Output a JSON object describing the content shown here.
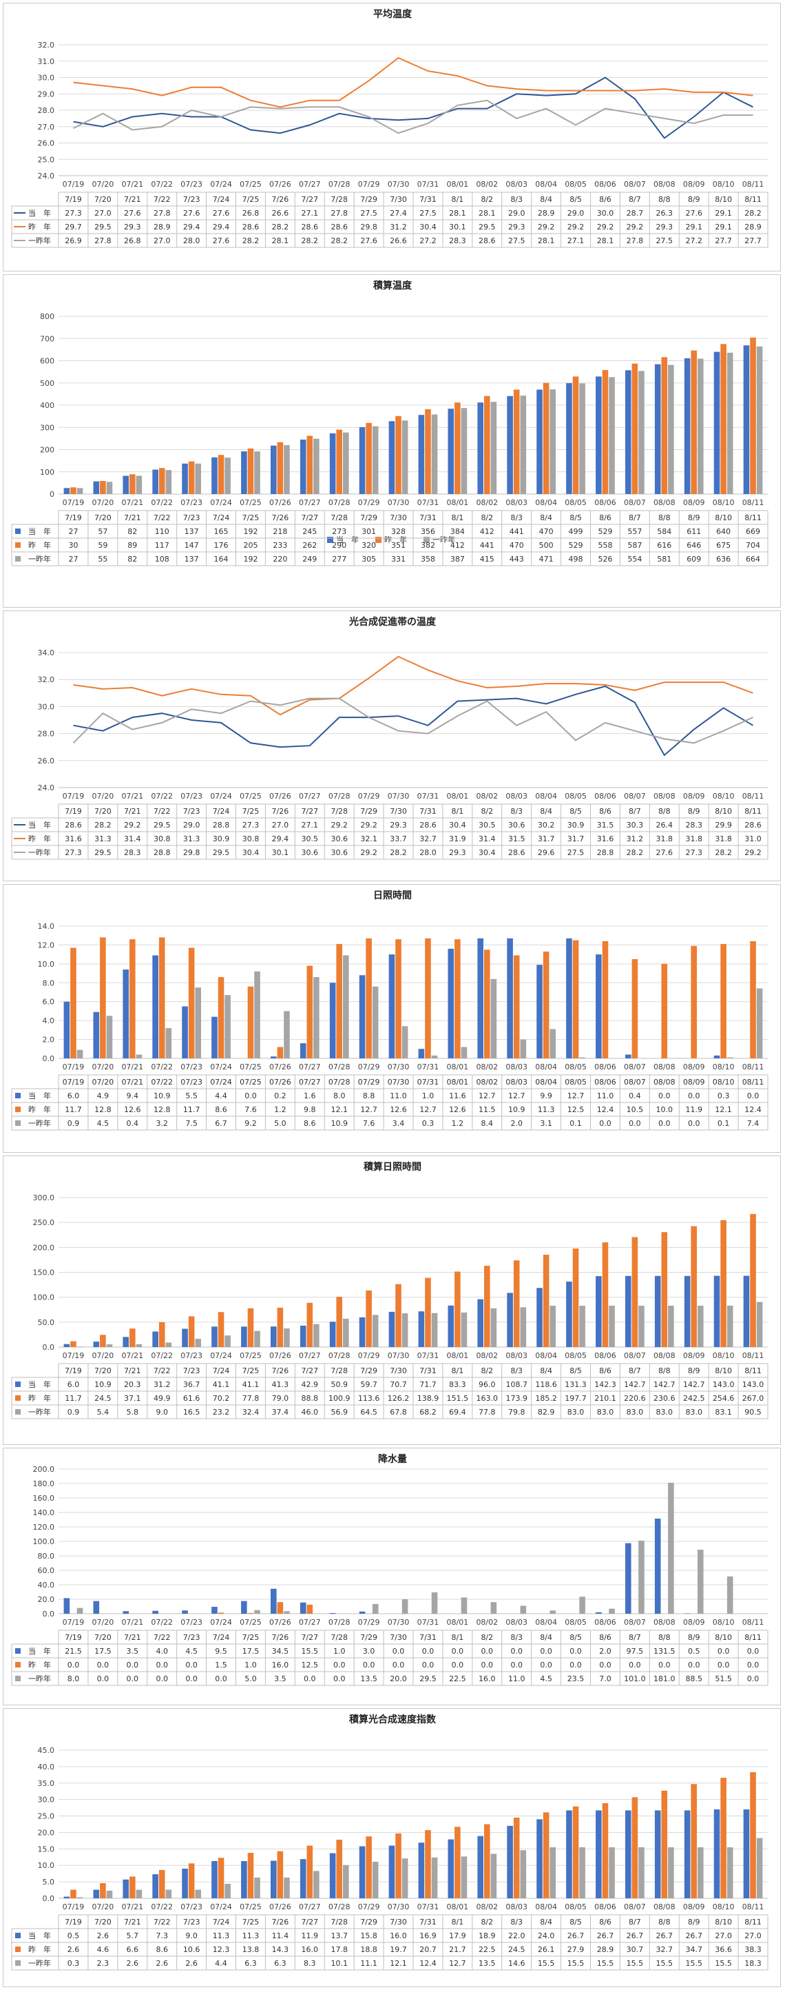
{
  "dates_top": [
    "07/19",
    "07/20",
    "07/21",
    "07/22",
    "07/23",
    "07/24",
    "07/25",
    "07/26",
    "07/27",
    "07/28",
    "07/29",
    "07/30",
    "07/31",
    "08/01",
    "08/02",
    "08/03",
    "08/04",
    "08/05",
    "08/06",
    "08/07",
    "08/08",
    "08/09",
    "08/10",
    "08/11"
  ],
  "dates_row": [
    "7/19",
    "7/20",
    "7/21",
    "7/22",
    "7/23",
    "7/24",
    "7/25",
    "7/26",
    "7/27",
    "7/28",
    "7/29",
    "7/30",
    "7/31",
    "8/1",
    "8/2",
    "8/3",
    "8/4",
    "8/5",
    "8/6",
    "8/7",
    "8/8",
    "8/9",
    "8/10",
    "8/11"
  ],
  "chart_data": [
    {
      "type": "line",
      "title": "平均温度",
      "ylim": [
        24.0,
        32.0
      ],
      "ystep": 1.0,
      "decimals": 1,
      "grid": true,
      "x_source": "top",
      "row_x_source": "row",
      "series": [
        {
          "name": "当　年",
          "color": "#2f5597",
          "values": [
            27.3,
            27.0,
            27.6,
            27.8,
            27.6,
            27.6,
            26.8,
            26.6,
            27.1,
            27.8,
            27.5,
            27.4,
            27.5,
            28.1,
            28.1,
            29.0,
            28.9,
            29.0,
            30.0,
            28.7,
            26.3,
            27.6,
            29.1,
            28.2
          ]
        },
        {
          "name": "昨　年",
          "color": "#ed7d31",
          "values": [
            29.7,
            29.5,
            29.3,
            28.9,
            29.4,
            29.4,
            28.6,
            28.2,
            28.6,
            28.6,
            29.8,
            31.2,
            30.4,
            30.1,
            29.5,
            29.3,
            29.2,
            29.2,
            29.2,
            29.2,
            29.3,
            29.1,
            29.1,
            28.9
          ]
        },
        {
          "name": "一昨年",
          "color": "#a5a5a5",
          "values": [
            26.9,
            27.8,
            26.8,
            27.0,
            28.0,
            27.6,
            28.2,
            28.1,
            28.2,
            28.2,
            27.6,
            26.6,
            27.2,
            28.3,
            28.6,
            27.5,
            28.1,
            27.1,
            28.1,
            27.8,
            27.5,
            27.2,
            27.7,
            27.7
          ]
        }
      ]
    },
    {
      "type": "bar",
      "title": "積算温度",
      "ylim": [
        0,
        800
      ],
      "ystep": 100,
      "decimals": 0,
      "grid": true,
      "x_source": "top",
      "row_x_source": "row",
      "legend": "bottom",
      "series": [
        {
          "name": "当　年",
          "color": "#4472c4",
          "values": [
            27,
            57,
            82,
            110,
            137,
            165,
            192,
            218,
            245,
            273,
            301,
            328,
            356,
            384,
            412,
            441,
            470,
            499,
            529,
            557,
            584,
            611,
            640,
            669
          ]
        },
        {
          "name": "昨　年",
          "color": "#ed7d31",
          "values": [
            30,
            59,
            89,
            117,
            147,
            176,
            205,
            233,
            262,
            290,
            320,
            351,
            382,
            412,
            441,
            470,
            500,
            529,
            558,
            587,
            616,
            646,
            675,
            704
          ]
        },
        {
          "name": "一昨年",
          "color": "#a5a5a5",
          "values": [
            27,
            55,
            82,
            108,
            137,
            164,
            192,
            220,
            249,
            277,
            305,
            331,
            358,
            387,
            415,
            443,
            471,
            498,
            526,
            554,
            581,
            609,
            636,
            664
          ]
        }
      ]
    },
    {
      "type": "line",
      "title": "光合成促進帯の温度",
      "ylim": [
        24.0,
        34.0
      ],
      "ystep": 2.0,
      "decimals": 1,
      "grid": true,
      "x_source": "top",
      "row_x_source": "row",
      "series": [
        {
          "name": "当　年",
          "color": "#2f5597",
          "values": [
            28.6,
            28.2,
            29.2,
            29.5,
            29.0,
            28.8,
            27.3,
            27.0,
            27.1,
            29.2,
            29.2,
            29.3,
            28.6,
            30.4,
            30.5,
            30.6,
            30.2,
            30.9,
            31.5,
            30.3,
            26.4,
            28.3,
            29.9,
            28.6
          ]
        },
        {
          "name": "昨　年",
          "color": "#ed7d31",
          "values": [
            31.6,
            31.3,
            31.4,
            30.8,
            31.3,
            30.9,
            30.8,
            29.4,
            30.5,
            30.6,
            32.1,
            33.7,
            32.7,
            31.9,
            31.4,
            31.5,
            31.7,
            31.7,
            31.6,
            31.2,
            31.8,
            31.8,
            31.8,
            31.0
          ]
        },
        {
          "name": "一昨年",
          "color": "#a5a5a5",
          "values": [
            27.3,
            29.5,
            28.3,
            28.8,
            29.8,
            29.5,
            30.4,
            30.1,
            30.6,
            30.6,
            29.2,
            28.2,
            28.0,
            29.3,
            30.4,
            28.6,
            29.6,
            27.5,
            28.8,
            28.2,
            27.6,
            27.3,
            28.2,
            29.2
          ]
        }
      ]
    },
    {
      "type": "bar",
      "title": "日照時間",
      "ylim": [
        0.0,
        14.0
      ],
      "ystep": 2.0,
      "decimals": 1,
      "grid": true,
      "x_source": "top",
      "row_x_source": "top",
      "series": [
        {
          "name": "当　年",
          "color": "#4472c4",
          "values": [
            6.0,
            4.9,
            9.4,
            10.9,
            5.5,
            4.4,
            0.0,
            0.2,
            1.6,
            8.0,
            8.8,
            11.0,
            1.0,
            11.6,
            12.7,
            12.7,
            9.9,
            12.7,
            11.0,
            0.4,
            0.0,
            0.0,
            0.3,
            0.0
          ]
        },
        {
          "name": "昨　年",
          "color": "#ed7d31",
          "values": [
            11.7,
            12.8,
            12.6,
            12.8,
            11.7,
            8.6,
            7.6,
            1.2,
            9.8,
            12.1,
            12.7,
            12.6,
            12.7,
            12.6,
            11.5,
            10.9,
            11.3,
            12.5,
            12.4,
            10.5,
            10.0,
            11.9,
            12.1,
            12.4
          ]
        },
        {
          "name": "一昨年",
          "color": "#a5a5a5",
          "values": [
            0.9,
            4.5,
            0.4,
            3.2,
            7.5,
            6.7,
            9.2,
            5.0,
            8.6,
            10.9,
            7.6,
            3.4,
            0.3,
            1.2,
            8.4,
            2.0,
            3.1,
            0.1,
            0.0,
            0.0,
            0.0,
            0.0,
            0.1,
            7.4
          ]
        }
      ]
    },
    {
      "type": "bar",
      "title": "積算日照時間",
      "ylim": [
        0.0,
        300.0
      ],
      "ystep": 50.0,
      "decimals": 1,
      "grid": true,
      "x_source": "top",
      "row_x_source": "row",
      "series": [
        {
          "name": "当　年",
          "color": "#4472c4",
          "values": [
            6.0,
            10.9,
            20.3,
            31.2,
            36.7,
            41.1,
            41.1,
            41.3,
            42.9,
            50.9,
            59.7,
            70.7,
            71.7,
            83.3,
            96.0,
            108.7,
            118.6,
            131.3,
            142.3,
            142.7,
            142.7,
            142.7,
            143.0,
            143.0
          ]
        },
        {
          "name": "昨　年",
          "color": "#ed7d31",
          "values": [
            11.7,
            24.5,
            37.1,
            49.9,
            61.6,
            70.2,
            77.8,
            79.0,
            88.8,
            100.9,
            113.6,
            126.2,
            138.9,
            151.5,
            163.0,
            173.9,
            185.2,
            197.7,
            210.1,
            220.6,
            230.6,
            242.5,
            254.6,
            267.0
          ]
        },
        {
          "name": "一昨年",
          "color": "#a5a5a5",
          "values": [
            0.9,
            5.4,
            5.8,
            9.0,
            16.5,
            23.2,
            32.4,
            37.4,
            46.0,
            56.9,
            64.5,
            67.8,
            68.2,
            69.4,
            77.8,
            79.8,
            82.9,
            83.0,
            83.0,
            83.0,
            83.0,
            83.0,
            83.1,
            90.5
          ]
        }
      ]
    },
    {
      "type": "bar",
      "title": "降水量",
      "ylim": [
        0.0,
        200.0
      ],
      "ystep": 20.0,
      "decimals": 1,
      "grid": true,
      "x_source": "top",
      "row_x_source": "row",
      "series": [
        {
          "name": "当　年",
          "color": "#4472c4",
          "values": [
            21.5,
            17.5,
            3.5,
            4.0,
            4.5,
            9.5,
            17.5,
            34.5,
            15.5,
            1.0,
            3.0,
            0.0,
            0.0,
            0.0,
            0.0,
            0.0,
            0.0,
            0.0,
            2.0,
            97.5,
            131.5,
            0.5,
            0.0,
            0.0
          ]
        },
        {
          "name": "昨　年",
          "color": "#ed7d31",
          "values": [
            0.0,
            0.0,
            0.0,
            0.0,
            0.0,
            1.5,
            1.0,
            16.0,
            12.5,
            0.0,
            0.0,
            0.0,
            0.0,
            0.0,
            0.0,
            0.0,
            0.0,
            0.0,
            0.0,
            0.0,
            0.0,
            0.0,
            0.0,
            0.0
          ]
        },
        {
          "name": "一昨年",
          "color": "#a5a5a5",
          "values": [
            8.0,
            0.0,
            0.0,
            0.0,
            0.0,
            0.0,
            5.0,
            3.5,
            0.0,
            0.0,
            13.5,
            20.0,
            29.5,
            22.5,
            16.0,
            11.0,
            4.5,
            23.5,
            7.0,
            101.0,
            181.0,
            88.5,
            51.5,
            0.0
          ]
        }
      ]
    },
    {
      "type": "bar",
      "title": "積算光合成速度指数",
      "ylim": [
        0.0,
        45.0
      ],
      "ystep": 5.0,
      "decimals": 1,
      "grid": true,
      "x_source": "top",
      "row_x_source": "row",
      "series": [
        {
          "name": "当　年",
          "color": "#4472c4",
          "values": [
            0.5,
            2.6,
            5.7,
            7.3,
            9.0,
            11.3,
            11.3,
            11.4,
            11.9,
            13.7,
            15.8,
            16.0,
            16.9,
            17.9,
            18.9,
            22.0,
            24.0,
            26.7,
            26.7,
            26.7,
            26.7,
            26.7,
            27.0,
            27.0
          ]
        },
        {
          "name": "昨　年",
          "color": "#ed7d31",
          "values": [
            2.6,
            4.6,
            6.6,
            8.6,
            10.6,
            12.3,
            13.8,
            14.3,
            16.0,
            17.8,
            18.8,
            19.7,
            20.7,
            21.7,
            22.5,
            24.5,
            26.1,
            27.9,
            28.9,
            30.7,
            32.7,
            34.7,
            36.6,
            38.3
          ]
        },
        {
          "name": "一昨年",
          "color": "#a5a5a5",
          "values": [
            0.3,
            2.3,
            2.6,
            2.6,
            2.6,
            4.4,
            6.3,
            6.3,
            8.3,
            10.1,
            11.1,
            12.1,
            12.4,
            12.7,
            13.5,
            14.6,
            15.5,
            15.5,
            15.5,
            15.5,
            15.5,
            15.5,
            15.5,
            18.3
          ]
        }
      ]
    }
  ]
}
